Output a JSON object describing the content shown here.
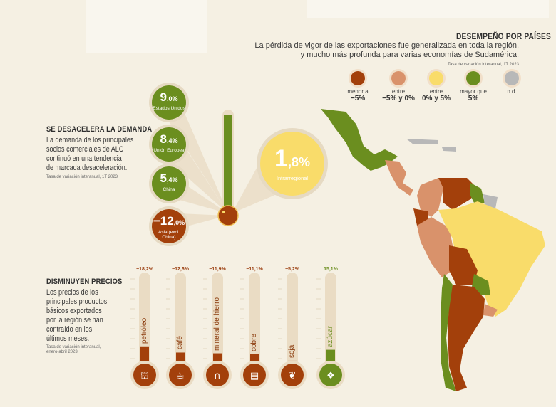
{
  "countries": {
    "title": "DESEMPEÑO POR PAÍSES",
    "text1": "La pérdida de vigor de las exportaciones fue generalizada en toda la región,",
    "text2": "y mucho más profunda para varias economías de Sudamérica.",
    "note": "Tasa de variación interanual, 1T 2023",
    "legend": [
      {
        "top": "menor a",
        "bottom": "−5%",
        "color": "#a3400b"
      },
      {
        "top": "entre",
        "bottom": "−5% y 0%",
        "color": "#d9926b"
      },
      {
        "top": "entre",
        "bottom": "0% y 5%",
        "color": "#f9dc6a"
      },
      {
        "top": "mayor que",
        "bottom": "5%",
        "color": "#6b8e1f"
      },
      {
        "top": "n.d.",
        "bottom": "",
        "color": "#b8b8b8"
      }
    ]
  },
  "demand": {
    "title": "SE DESACELERA LA DEMANDA",
    "lines": [
      "La demanda de los principales",
      "socios comerciales de ALC",
      "continuó en una tendencia",
      "de marcada desaceleración."
    ],
    "note": "Tasa de variación interanual, 1T 2023",
    "partners": [
      {
        "int": "9",
        "dec": ",0%",
        "name": "Estados Unidos",
        "value": 9.0
      },
      {
        "int": "8",
        "dec": ",4%",
        "name": "Unión Europea",
        "value": 8.4
      },
      {
        "int": "5",
        "dec": ",4%",
        "name": "China",
        "value": 5.4
      },
      {
        "int": "−12",
        "dec": ",0%",
        "name": "Asia (excl. China)",
        "value": -12.0
      }
    ],
    "intra": {
      "int": "1",
      "dec": ",8%",
      "name": "Intrarregional",
      "value": 1.8
    }
  },
  "prices": {
    "title": "DISMINUYEN PRECIOS",
    "lines": [
      "Los precios de los",
      "principales productos",
      "básicos exportados",
      "por la región se han",
      "contraído en los",
      "últimos meses."
    ],
    "note1": "Tasa de variación interanual,",
    "note2": "enero-abril 2023"
  },
  "chart_data": {
    "type": "bar",
    "categories": [
      "petróleo",
      "café",
      "mineral de hierro",
      "cobre",
      "soja",
      "azúcar"
    ],
    "values": [
      -18.2,
      -12.6,
      -11.9,
      -11.1,
      -5.2,
      15.1
    ],
    "labels": [
      "−18,2%",
      "−12,6%",
      "−11,9%",
      "−11,1%",
      "−5,2%",
      "15,1%"
    ],
    "icons": [
      "oil-rig-icon",
      "coffee-beans-icon",
      "magnet-icon",
      "copper-coil-icon",
      "soy-icon",
      "sugar-cubes-icon"
    ],
    "colors": {
      "negative": "#a3400b",
      "positive": "#6b8e1f"
    }
  }
}
